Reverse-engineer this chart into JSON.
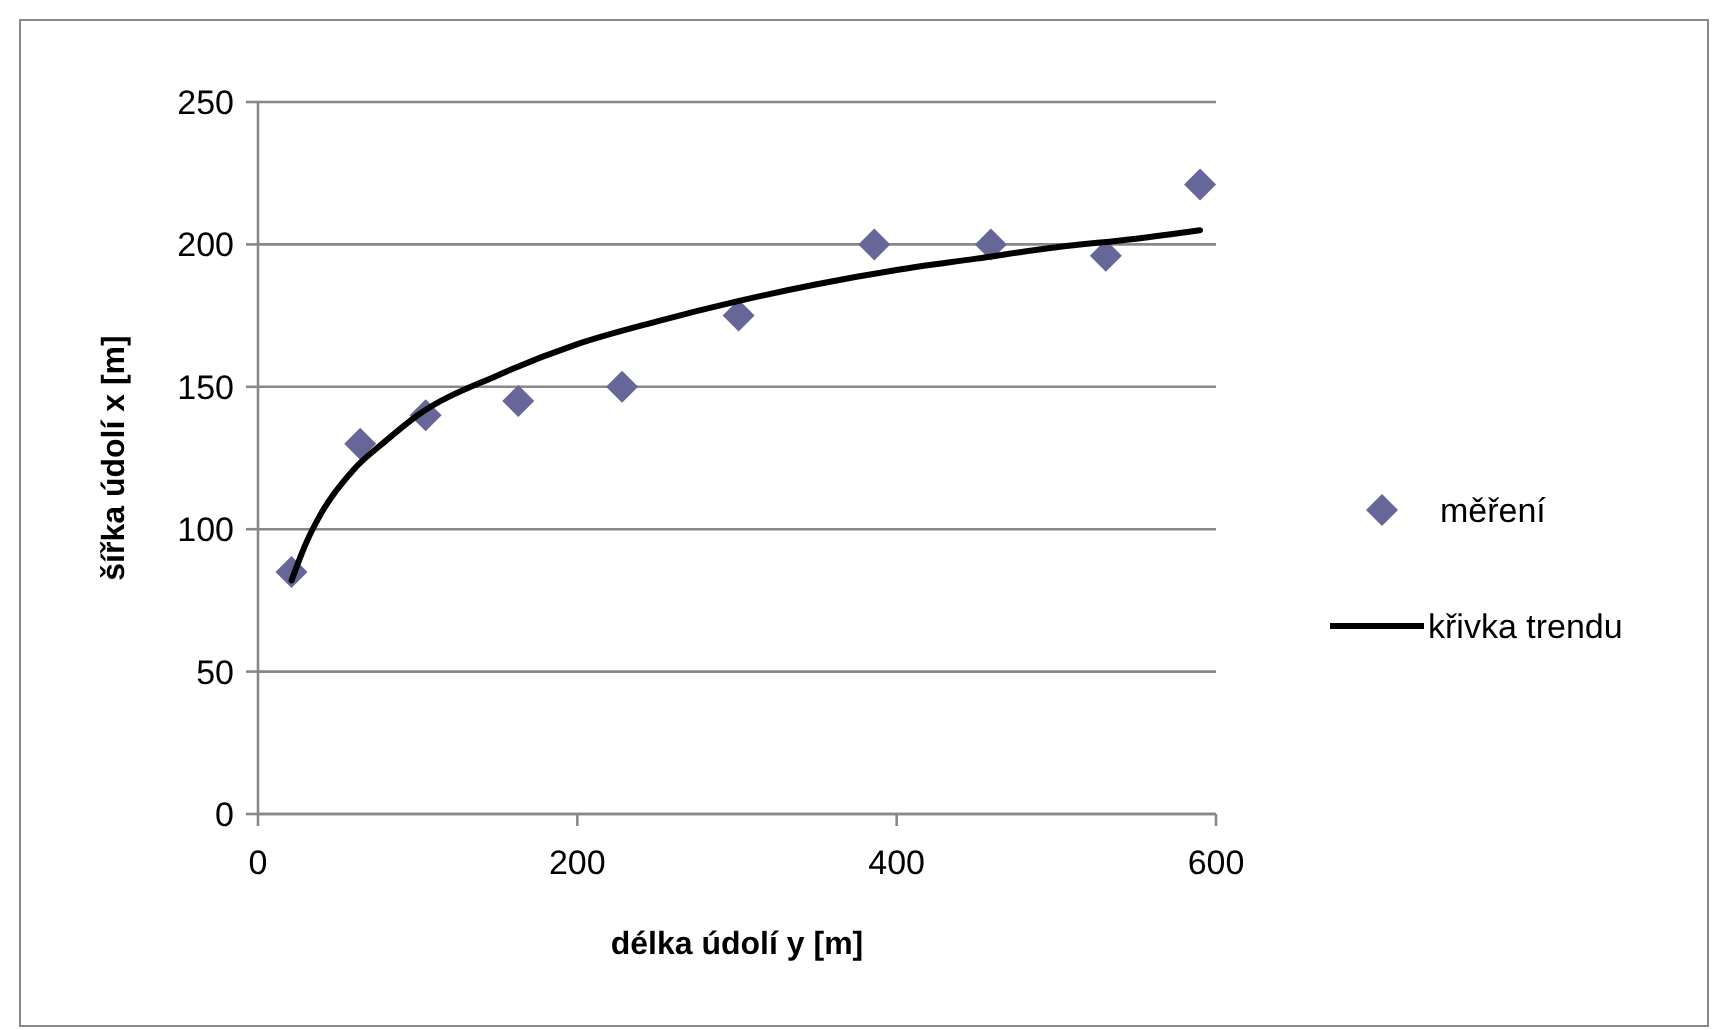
{
  "chart_data": {
    "type": "scatter",
    "xlabel": "délka údolí y [m]",
    "ylabel": "šířka údolí x [m]",
    "xlim": [
      0,
      600
    ],
    "xticks": [
      0,
      200,
      400,
      600
    ],
    "ylim": [
      0,
      250
    ],
    "yticks": [
      0,
      50,
      100,
      150,
      200,
      250
    ],
    "grid": "y",
    "legend": "right",
    "series": [
      {
        "name": "měření",
        "marker": "diamond",
        "color": "#666699",
        "x": [
          21,
          64,
          105,
          163,
          228,
          301,
          386,
          459,
          531,
          590
        ],
        "values": [
          85,
          130,
          140,
          145,
          150,
          175,
          200,
          200,
          196,
          221
        ]
      },
      {
        "name": "křivka trendu",
        "type": "line",
        "marker": "none",
        "color": "#000000",
        "x": [
          21,
          30,
          40,
          60,
          80,
          100,
          150,
          200,
          250,
          300,
          350,
          400,
          450,
          500,
          550,
          590
        ],
        "values": [
          82,
          95,
          106,
          121,
          131,
          140,
          154,
          165,
          173,
          180,
          186,
          191,
          195,
          199,
          202,
          205
        ]
      }
    ]
  }
}
